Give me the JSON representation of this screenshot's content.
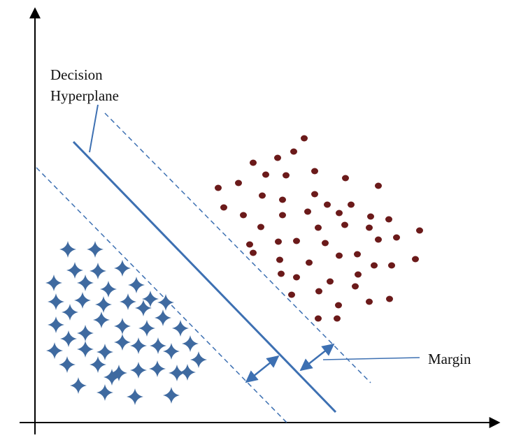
{
  "decision_label": {
    "line1": "Decision",
    "line2": "Hyperplane"
  },
  "margin_label": "Margin"
}
